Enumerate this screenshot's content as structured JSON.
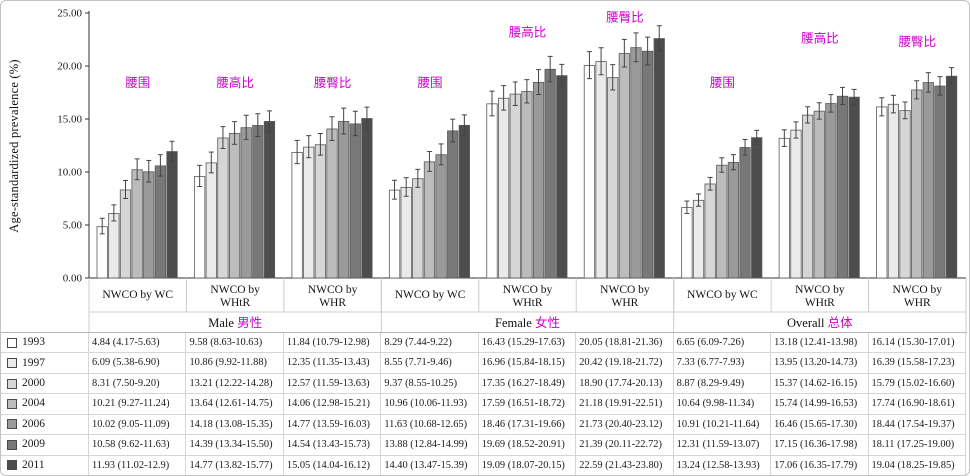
{
  "chart_data": {
    "type": "bar",
    "title": "",
    "ylabel": "Age-standardized prevalence (%)",
    "ylim": [
      0,
      25
    ],
    "yticks": [
      "0.00",
      "5.00",
      "10.00",
      "15.00",
      "20.00",
      "25.00"
    ],
    "grid": false,
    "legend_position": "table-left-column",
    "annotation_color": "#cc00cc",
    "bar_edge_color": "#5a5a5a",
    "error_bar_color": "#444444",
    "bar_fill_colors": [
      "#ffffff",
      "#eaeaea",
      "#d6d6d6",
      "#bcbcbc",
      "#9a9a9a",
      "#787878",
      "#4d4d4d"
    ],
    "years": [
      "1993",
      "1997",
      "2000",
      "2004",
      "2006",
      "2009",
      "2011"
    ],
    "sections": [
      {
        "label_en": "Male",
        "label_zh": "男性"
      },
      {
        "label_en": "Female",
        "label_zh": "女性"
      },
      {
        "label_en": "Overall",
        "label_zh": "总体"
      }
    ],
    "groups": [
      {
        "section": 0,
        "label": "NWCO by WC",
        "label_lines": [
          "NWCO by WC"
        ],
        "annotation": "腰围",
        "annotation_y": 18.0,
        "values": [
          "4.84 (4.17-5.63)",
          "6.09 (5.38-6.90)",
          "8.31 (7.50-9.20)",
          "10.21 (9.27-11.24)",
          "10.02 (9.05-11.09)",
          "10.58 (9.62-11.63)",
          "11.93 (11.02-12.9)"
        ]
      },
      {
        "section": 0,
        "label": "NWCO by WHtR",
        "label_lines": [
          "NWCO by",
          "WHtR"
        ],
        "annotation": "腰高比",
        "annotation_y": 18.0,
        "values": [
          "9.58 (8.63-10.63)",
          "10.86 (9.92-11.88)",
          "13.21 (12.22-14.28)",
          "13.64 (12.61-14.75)",
          "14.18 (13.08-15.35)",
          "14.39 (13.34-15.50)",
          "14.77 (13.82-15.77)"
        ]
      },
      {
        "section": 0,
        "label": "NWCO by WHR",
        "label_lines": [
          "NWCO by",
          "WHR"
        ],
        "annotation": "腰臀比",
        "annotation_y": 18.0,
        "values": [
          "11.84 (10.79-12.98)",
          "12.35 (11.35-13.43)",
          "12.57 (11.59-13.63)",
          "14.06 (12.98-15.21)",
          "14.77 (13.59-16.03)",
          "14.54 (13.43-15.73)",
          "15.05 (14.04-16.12)"
        ]
      },
      {
        "section": 1,
        "label": "NWCO by WC",
        "label_lines": [
          "NWCO by WC"
        ],
        "annotation": "腰围",
        "annotation_y": 18.0,
        "values": [
          "8.29 (7.44-9.22)",
          "8.55 (7.71-9.46)",
          "9.37 (8.55-10.25)",
          "10.96 (10.06-11.93)",
          "11.63 (10.68-12.65)",
          "13.88 (12.84-14.99)",
          "14.40 (13.47-15.39)"
        ]
      },
      {
        "section": 1,
        "label": "NWCO by WHtR",
        "label_lines": [
          "NWCO by",
          "WHtR"
        ],
        "annotation": "腰高比",
        "annotation_y": 22.8,
        "values": [
          "16.43 (15.29-17.63)",
          "16.96 (15.84-18.15)",
          "17.35 (16.27-18.49)",
          "17.59 (16.51-18.72)",
          "18.46 (17.31-19.66)",
          "19.69 (18.52-20.91)",
          "19.09 (18.07-20.15)"
        ]
      },
      {
        "section": 1,
        "label": "NWCO by WHR",
        "label_lines": [
          "NWCO by",
          "WHR"
        ],
        "annotation": "腰臀比",
        "annotation_y": 24.2,
        "values": [
          "20.05 (18.81-21.36)",
          "20.42 (19.18-21.72)",
          "18.90 (17.74-20.13)",
          "21.18 (19.91-22.51)",
          "21.73 (20.40-23.12)",
          "21.39 (20.11-22.72)",
          "22.59 (21.43-23.80)"
        ]
      },
      {
        "section": 2,
        "label": "NWCO by WC",
        "label_lines": [
          "NWCO by WC"
        ],
        "annotation": "腰围",
        "annotation_y": 18.0,
        "values": [
          "6.65 (6.09-7.26)",
          "7.33 (6.77-7.93)",
          "8.87 (8.29-9.49)",
          "10.64 (9.98-11.34)",
          "10.91 (10.21-11.64)",
          "12.31 (11.59-13.07)",
          "13.24 (12.58-13.93)"
        ]
      },
      {
        "section": 2,
        "label": "NWCO by WHtR",
        "label_lines": [
          "NWCO by",
          "WHtR"
        ],
        "annotation": "腰高比",
        "annotation_y": 22.2,
        "values": [
          "13.18 (12.41-13.98)",
          "13.95 (13.20-14.73)",
          "15.37 (14.62-16.15)",
          "15.74 (14.99-16.53)",
          "16.46 (15.65-17.30)",
          "17.15 (16.36-17.98)",
          "17.06 (16.35-17.79)"
        ]
      },
      {
        "section": 2,
        "label": "NWCO by WHR",
        "label_lines": [
          "NWCO by",
          "WHR"
        ],
        "annotation": "腰臀比",
        "annotation_y": 21.9,
        "values": [
          "16.14 (15.30-17.01)",
          "16.39 (15.58-17.23)",
          "15.79 (15.02-16.60)",
          "17.74 (16.90-18.61)",
          "18.44 (17.54-19.37)",
          "18.11 (17.25-19.00)",
          "19.04 (18.25-19.85)"
        ]
      }
    ]
  }
}
